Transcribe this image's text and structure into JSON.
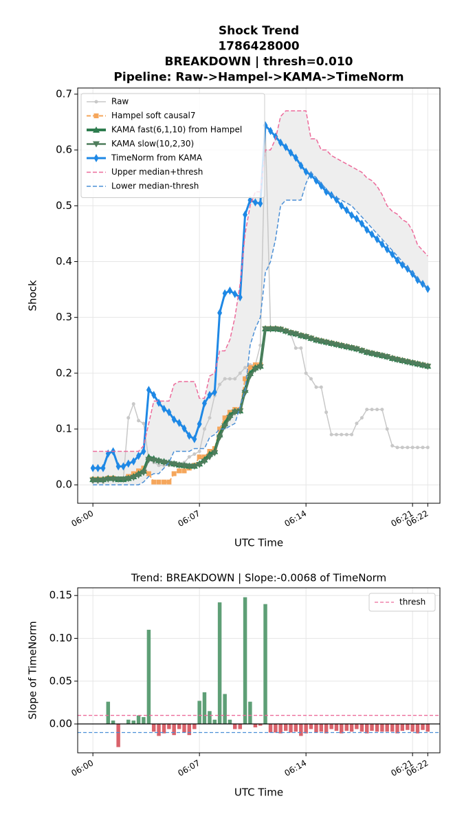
{
  "chart_data": [
    {
      "type": "line",
      "title": [
        "Shock Trend",
        "1786428000",
        "BREAKDOWN | thresh=0.010",
        "Pipeline: Raw->Hampel->KAMA->TimeNorm"
      ],
      "xlabel": "UTC Time",
      "ylabel": "Shock",
      "x": [
        0,
        0.33,
        0.67,
        1,
        1.33,
        1.67,
        2,
        2.33,
        2.67,
        3,
        3.33,
        3.67,
        4,
        4.33,
        4.67,
        5,
        5.33,
        5.67,
        6,
        6.33,
        6.67,
        7,
        7.33,
        7.67,
        8,
        8.33,
        8.67,
        9,
        9.33,
        9.67,
        10,
        10.33,
        10.67,
        11,
        11.33,
        11.67,
        12,
        12.33,
        12.67,
        13,
        13.33,
        13.67,
        14,
        14.33,
        14.67,
        15,
        15.33,
        15.67,
        16,
        16.33,
        16.67,
        17,
        17.33,
        17.67,
        18,
        18.33,
        18.67,
        19,
        19.33,
        19.67,
        20,
        20.33,
        20.67,
        21,
        21.33,
        21.67,
        22
      ],
      "xlim": [
        -1,
        22.8
      ],
      "ylim": [
        -0.033,
        0.711
      ],
      "xticks": [
        {
          "value": 0,
          "label": "06:00"
        },
        {
          "value": 7,
          "label": "06:07"
        },
        {
          "value": 14,
          "label": "06:14"
        },
        {
          "value": 21,
          "label": "06:21"
        },
        {
          "value": 22,
          "label": "06:22"
        }
      ],
      "yticks": [
        {
          "value": 0,
          "label": "0.0"
        },
        0.1,
        0.2,
        0.3,
        0.4,
        0.5,
        0.6,
        0.7
      ],
      "grid": true,
      "legend": "upper left",
      "band": {
        "series": [
          5,
          6
        ],
        "color": "#eeeeee"
      },
      "series": [
        {
          "name": "Raw",
          "color": "#c8c8c8",
          "marker": "o",
          "width": 1.5,
          "values": [
            0.005,
            0.005,
            0.005,
            0.01,
            0.01,
            0.01,
            0.01,
            0.12,
            0.145,
            0.115,
            0.11,
            0.045,
            0.04,
            0.035,
            0.035,
            0.035,
            0.035,
            0.035,
            0.04,
            0.05,
            0.055,
            0.06,
            0.1,
            0.12,
            0.16,
            0.18,
            0.19,
            0.19,
            0.19,
            0.2,
            0.21,
            0.215,
            0.215,
            0.25,
            0.64,
            0.28,
            0.28,
            0.28,
            0.275,
            0.27,
            0.245,
            0.245,
            0.2,
            0.19,
            0.175,
            0.175,
            0.13,
            0.09,
            0.09,
            0.09,
            0.09,
            0.09,
            0.11,
            0.12,
            0.135,
            0.135,
            0.135,
            0.135,
            0.1,
            0.07,
            0.067,
            0.067,
            0.067,
            0.067,
            0.067,
            0.067,
            0.067
          ]
        },
        {
          "name": "Hampel soft causal7",
          "color": "#f5a65b",
          "marker": "s",
          "dash": true,
          "width": 2,
          "values": [
            0.01,
            0.01,
            0.01,
            0.012,
            0.012,
            0.01,
            0.01,
            0.015,
            0.02,
            0.025,
            0.03,
            0.02,
            0.005,
            0.005,
            0.005,
            0.005,
            0.02,
            0.025,
            0.025,
            0.03,
            0.035,
            0.05,
            0.05,
            0.06,
            0.065,
            0.1,
            0.12,
            0.13,
            0.135,
            0.135,
            0.19,
            0.21,
            0.215,
            0.215,
            0.28,
            0.28,
            0.28,
            0.279,
            0.276,
            0.273,
            0.271,
            0.268,
            0.266,
            0.263,
            0.26,
            0.258,
            0.256,
            0.254,
            0.252,
            0.25,
            0.248,
            0.246,
            0.244,
            0.241,
            0.238,
            0.236,
            0.234,
            0.232,
            0.23,
            0.227,
            0.225,
            0.223,
            0.221,
            0.219,
            0.217,
            0.215,
            0.213
          ]
        },
        {
          "name": "KAMA fast(6,1,10) from Hampel",
          "color": "#2e7d4f",
          "marker": "^",
          "width": 4,
          "values": [
            0.01,
            0.01,
            0.01,
            0.012,
            0.012,
            0.01,
            0.01,
            0.012,
            0.015,
            0.02,
            0.025,
            0.05,
            0.047,
            0.044,
            0.042,
            0.04,
            0.038,
            0.036,
            0.035,
            0.034,
            0.034,
            0.038,
            0.045,
            0.055,
            0.06,
            0.09,
            0.11,
            0.125,
            0.132,
            0.133,
            0.17,
            0.2,
            0.21,
            0.213,
            0.28,
            0.28,
            0.28,
            0.279,
            0.276,
            0.273,
            0.271,
            0.268,
            0.266,
            0.263,
            0.26,
            0.258,
            0.256,
            0.254,
            0.252,
            0.25,
            0.248,
            0.246,
            0.244,
            0.241,
            0.238,
            0.236,
            0.234,
            0.232,
            0.23,
            0.227,
            0.225,
            0.223,
            0.221,
            0.219,
            0.217,
            0.215,
            0.213
          ]
        },
        {
          "name": "KAMA slow(10,2,30)",
          "color": "#4f7d5c",
          "marker": "v",
          "width": 2.5,
          "values": [
            0.008,
            0.008,
            0.008,
            0.01,
            0.01,
            0.01,
            0.01,
            0.011,
            0.013,
            0.017,
            0.022,
            0.045,
            0.044,
            0.042,
            0.04,
            0.038,
            0.037,
            0.035,
            0.034,
            0.033,
            0.033,
            0.036,
            0.042,
            0.05,
            0.057,
            0.085,
            0.105,
            0.12,
            0.13,
            0.132,
            0.165,
            0.195,
            0.207,
            0.211,
            0.279,
            0.279,
            0.279,
            0.278,
            0.275,
            0.272,
            0.27,
            0.267,
            0.265,
            0.262,
            0.259,
            0.257,
            0.255,
            0.253,
            0.251,
            0.249,
            0.247,
            0.245,
            0.243,
            0.24,
            0.237,
            0.235,
            0.233,
            0.231,
            0.229,
            0.226,
            0.224,
            0.222,
            0.22,
            0.218,
            0.216,
            0.214,
            0.212
          ]
        },
        {
          "name": "TimeNorm from KAMA",
          "color": "#1e88e5",
          "marker": "d",
          "width": 3,
          "values": [
            0.03,
            0.03,
            0.03,
            0.056,
            0.06,
            0.033,
            0.033,
            0.038,
            0.042,
            0.052,
            0.06,
            0.17,
            0.161,
            0.147,
            0.136,
            0.13,
            0.117,
            0.111,
            0.101,
            0.088,
            0.082,
            0.109,
            0.146,
            0.161,
            0.166,
            0.308,
            0.343,
            0.348,
            0.342,
            0.336,
            0.484,
            0.51,
            0.506,
            0.504,
            0.644,
            0.634,
            0.624,
            0.613,
            0.605,
            0.595,
            0.586,
            0.572,
            0.561,
            0.555,
            0.545,
            0.536,
            0.525,
            0.519,
            0.511,
            0.5,
            0.492,
            0.483,
            0.477,
            0.468,
            0.457,
            0.449,
            0.44,
            0.431,
            0.422,
            0.413,
            0.402,
            0.394,
            0.387,
            0.378,
            0.367,
            0.36,
            0.351
          ]
        },
        {
          "name": "Upper median+thresh",
          "color": "#ec6a9a",
          "dash": true,
          "width": 1.5,
          "values": [
            0.06,
            0.06,
            0.06,
            0.06,
            0.06,
            0.06,
            0.06,
            0.06,
            0.06,
            0.06,
            0.07,
            0.11,
            0.15,
            0.15,
            0.15,
            0.15,
            0.18,
            0.185,
            0.185,
            0.185,
            0.185,
            0.155,
            0.155,
            0.195,
            0.2,
            0.24,
            0.24,
            0.26,
            0.3,
            0.36,
            0.45,
            0.5,
            0.525,
            0.525,
            0.6,
            0.6,
            0.62,
            0.66,
            0.67,
            0.67,
            0.67,
            0.67,
            0.67,
            0.62,
            0.62,
            0.6,
            0.6,
            0.59,
            0.585,
            0.58,
            0.575,
            0.57,
            0.565,
            0.56,
            0.55,
            0.545,
            0.535,
            0.52,
            0.5,
            0.49,
            0.485,
            0.475,
            0.47,
            0.455,
            0.43,
            0.42,
            0.41
          ]
        },
        {
          "name": "Lower median-thresh",
          "color": "#4a8fd6",
          "dash": true,
          "width": 1.5,
          "values": [
            0,
            0,
            0,
            0,
            0,
            0,
            0,
            0,
            0,
            0,
            0.005,
            0.015,
            0.02,
            0.02,
            0.03,
            0.04,
            0.06,
            0.06,
            0.06,
            0.06,
            0.065,
            0.065,
            0.065,
            0.085,
            0.09,
            0.1,
            0.1,
            0.105,
            0.11,
            0.14,
            0.17,
            0.25,
            0.28,
            0.3,
            0.38,
            0.4,
            0.44,
            0.5,
            0.51,
            0.51,
            0.51,
            0.51,
            0.54,
            0.56,
            0.55,
            0.54,
            0.53,
            0.52,
            0.515,
            0.51,
            0.505,
            0.5,
            0.49,
            0.48,
            0.47,
            0.46,
            0.45,
            0.44,
            0.43,
            0.42,
            0.41,
            0.4,
            0.39,
            0.38,
            0.37,
            0.36,
            0.35
          ]
        }
      ]
    },
    {
      "type": "bar",
      "title": "Trend: BREAKDOWN | Slope:-0.0068 of TimeNorm",
      "xlabel": "UTC Time",
      "ylabel": "Slope of TimeNorm",
      "x": [
        0,
        0.33,
        0.67,
        1,
        1.33,
        1.67,
        2,
        2.33,
        2.67,
        3,
        3.33,
        3.67,
        4,
        4.33,
        4.67,
        5,
        5.33,
        5.67,
        6,
        6.33,
        6.67,
        7,
        7.33,
        7.67,
        8,
        8.33,
        8.67,
        9,
        9.33,
        9.67,
        10,
        10.33,
        10.67,
        11,
        11.33,
        11.67,
        12,
        12.33,
        12.67,
        13,
        13.33,
        13.67,
        14,
        14.33,
        14.67,
        15,
        15.33,
        15.67,
        16,
        16.33,
        16.67,
        17,
        17.33,
        17.67,
        18,
        18.33,
        18.67,
        19,
        19.33,
        19.67,
        20,
        20.33,
        20.67,
        21,
        21.33,
        21.67,
        22
      ],
      "values": [
        null,
        0,
        0,
        0.026,
        0.004,
        -0.027,
        0,
        0.005,
        0.004,
        0.01,
        0.008,
        0.11,
        -0.009,
        -0.014,
        -0.011,
        -0.006,
        -0.013,
        -0.006,
        -0.01,
        -0.013,
        -0.006,
        0.027,
        0.037,
        0.015,
        0.005,
        0.142,
        0.035,
        0.005,
        -0.006,
        -0.006,
        0.148,
        0.026,
        -0.004,
        -0.002,
        0.14,
        -0.01,
        -0.01,
        -0.011,
        -0.008,
        -0.01,
        -0.009,
        -0.014,
        -0.011,
        -0.006,
        -0.01,
        -0.009,
        -0.011,
        -0.006,
        -0.008,
        -0.011,
        -0.008,
        -0.009,
        -0.006,
        -0.009,
        -0.011,
        -0.008,
        -0.009,
        -0.009,
        -0.009,
        -0.009,
        -0.011,
        -0.008,
        -0.007,
        -0.009,
        -0.011,
        -0.007,
        -0.009
      ],
      "colors": {
        "positive": "#5e9f76",
        "negative": "#d9626b"
      },
      "xlim": [
        -1,
        22.8
      ],
      "ylim": [
        -0.0337,
        0.159
      ],
      "xticks": [
        {
          "value": 0,
          "label": "06:00"
        },
        {
          "value": 7,
          "label": "06:07"
        },
        {
          "value": 14,
          "label": "06:14"
        },
        {
          "value": 21,
          "label": "06:21"
        },
        {
          "value": 22,
          "label": "06:22"
        }
      ],
      "yticks": [
        {
          "value": 0,
          "label": "0.00"
        },
        {
          "value": 0.05,
          "label": "0.05"
        },
        {
          "value": 0.1,
          "label": "0.10"
        },
        {
          "value": 0.15,
          "label": "0.15"
        }
      ],
      "grid": true,
      "zero_line": true,
      "legend": "upper right",
      "threshold_lines": {
        "name": "thresh",
        "values": [
          0.01,
          -0.01
        ],
        "colors": [
          "#ec6a9a",
          "#4a8fd6"
        ]
      }
    }
  ]
}
